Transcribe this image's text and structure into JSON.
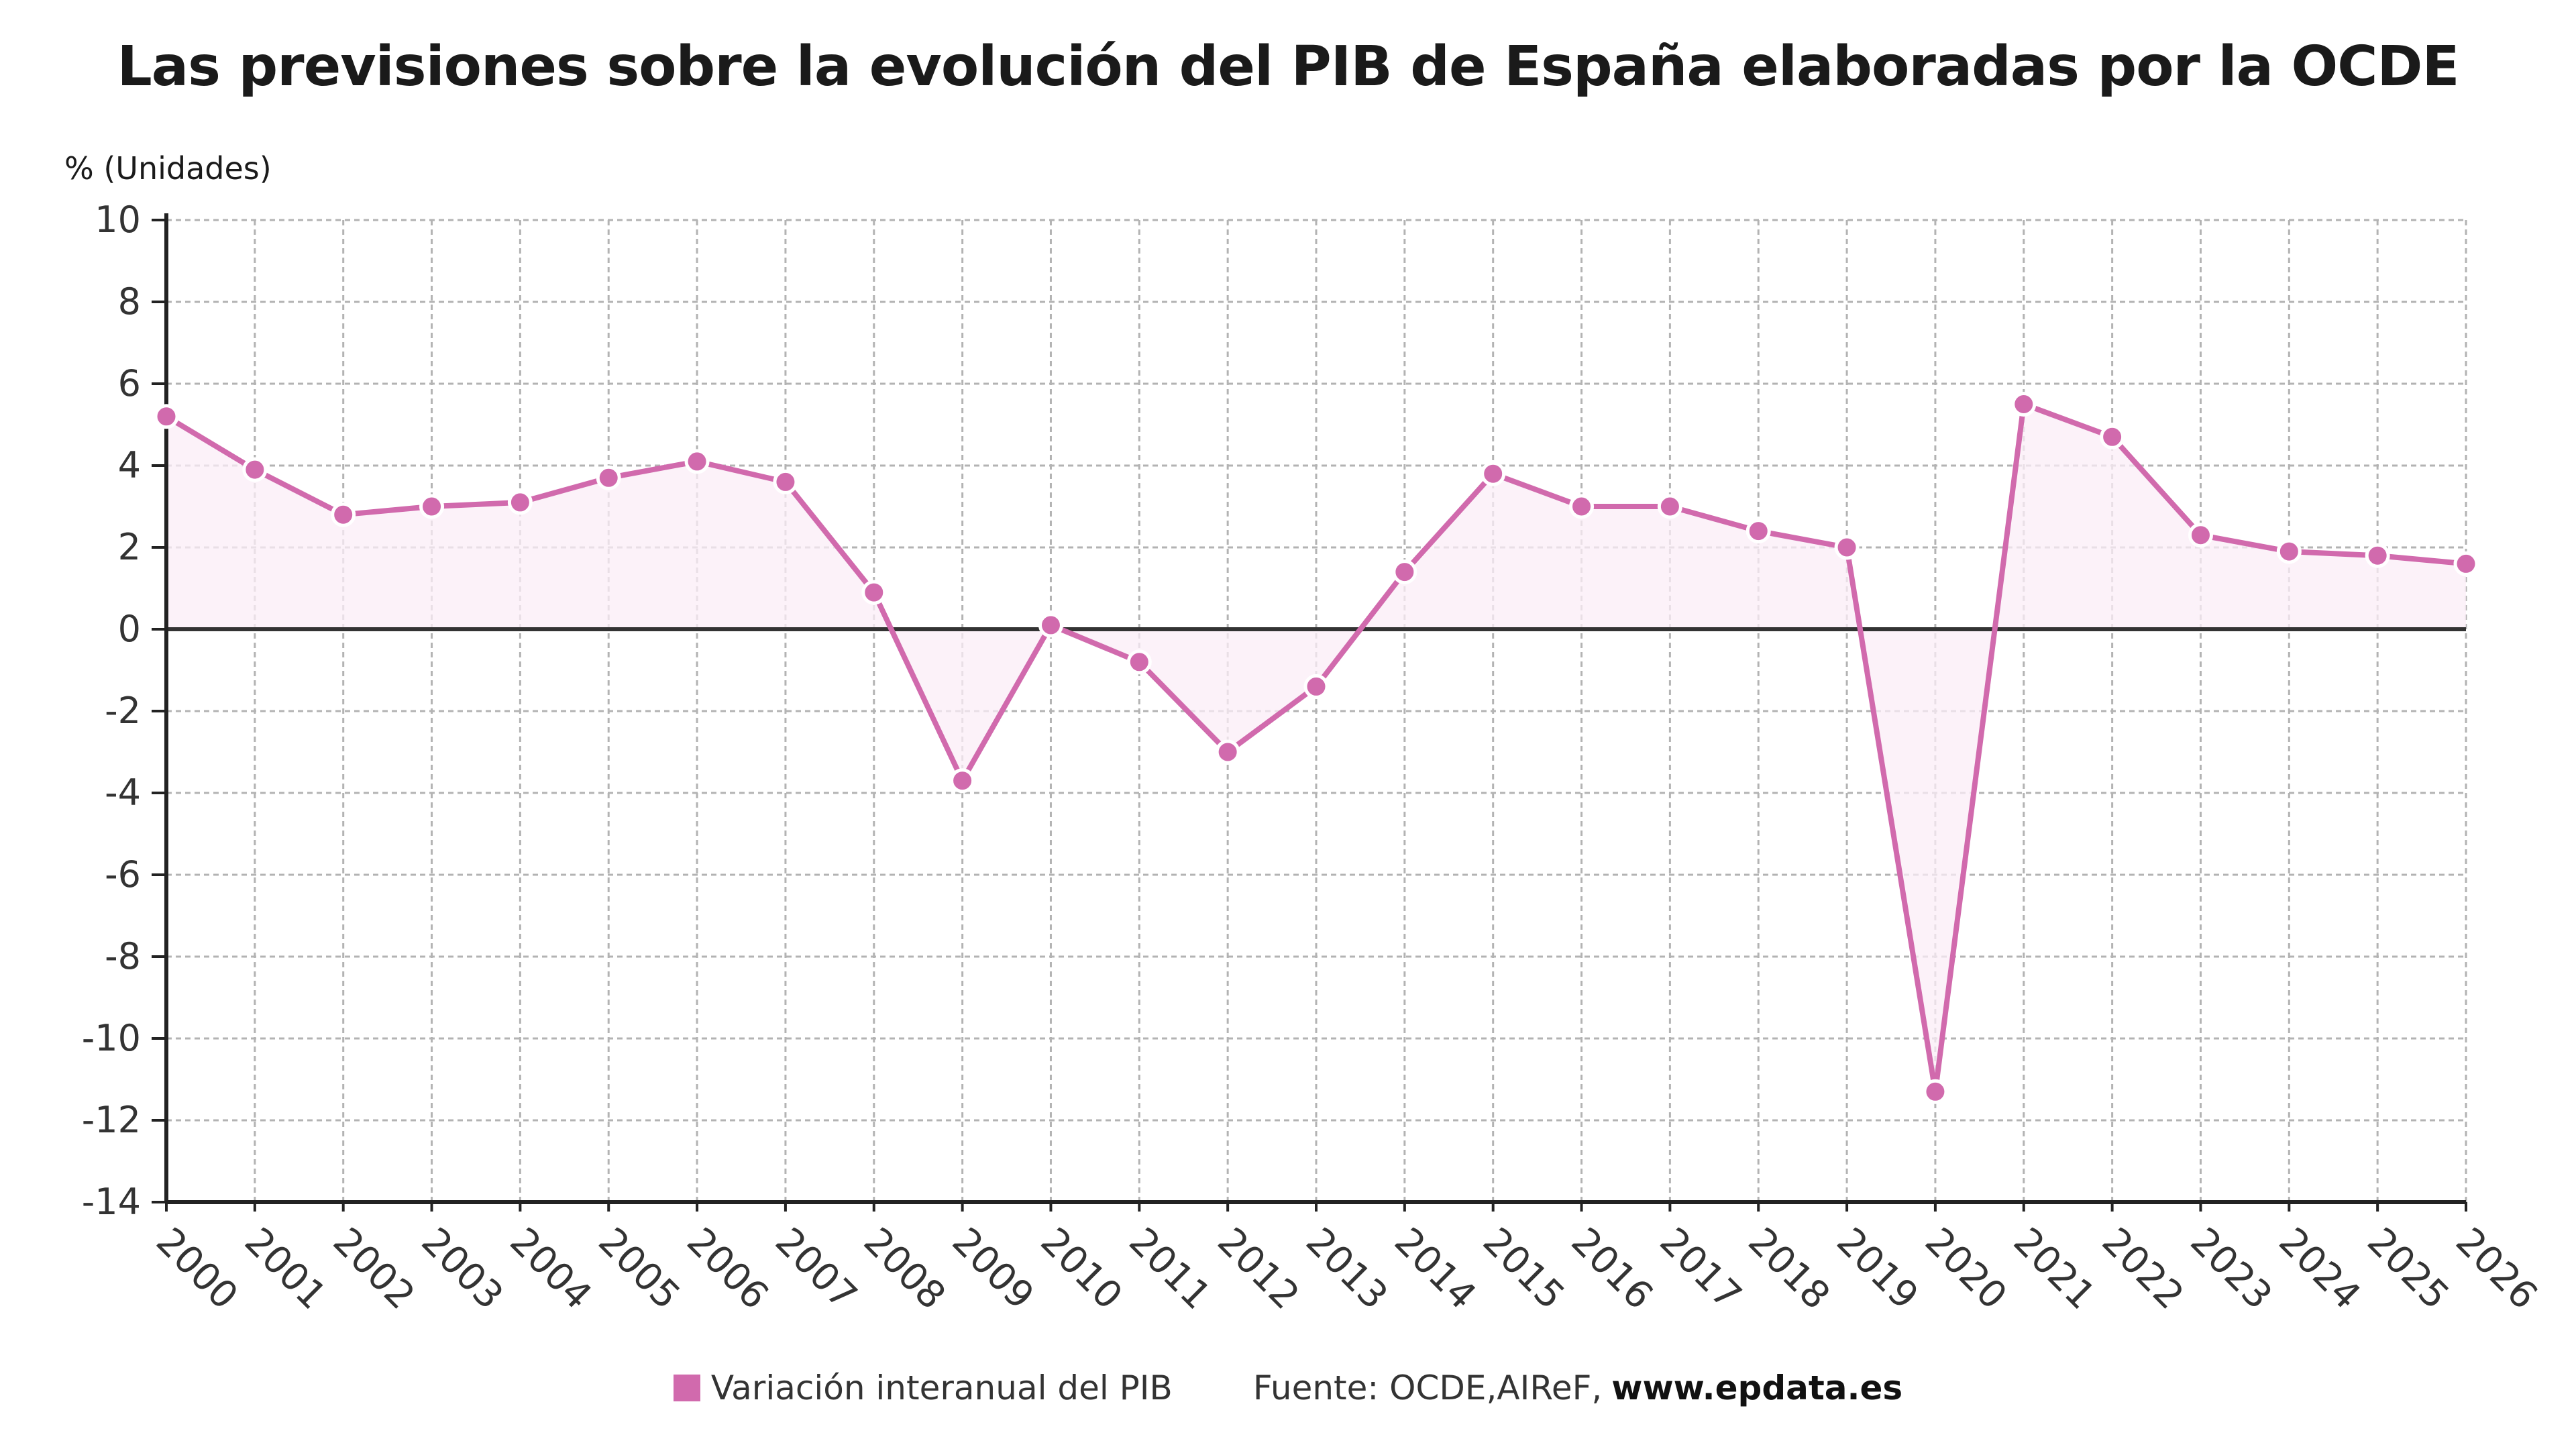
{
  "chart_data": {
    "type": "line",
    "title": "Las previsiones sobre la evolución del PIB de España elaboradas por la OCDE",
    "ylabel": "% (Unidades)",
    "xlabel": "",
    "ylim": [
      -14,
      10
    ],
    "ytick_step": 2,
    "grid": true,
    "legend_position": "bottom",
    "categories": [
      "2000",
      "2001",
      "2002",
      "2003",
      "2004",
      "2005",
      "2006",
      "2007",
      "2008",
      "2009",
      "2010",
      "2011",
      "2012",
      "2013",
      "2014",
      "2015",
      "2016",
      "2017",
      "2018",
      "2019",
      "2020",
      "2021",
      "2022",
      "2023",
      "2024",
      "2025",
      "2026"
    ],
    "series": [
      {
        "name": "Variación interanual del PIB",
        "color": "#d16aad",
        "values": [
          5.2,
          3.9,
          2.8,
          3.0,
          3.1,
          3.7,
          4.1,
          3.6,
          0.9,
          -3.7,
          0.1,
          -0.8,
          -3.0,
          -1.4,
          1.4,
          3.8,
          3.0,
          3.0,
          2.4,
          2.0,
          -11.3,
          5.5,
          4.7,
          2.3,
          1.9,
          1.8,
          1.6
        ]
      }
    ]
  },
  "source": {
    "prefix": "Fuente: OCDE,AIReF,",
    "site": "www.epdata.es"
  },
  "colors": {
    "line": "#d16aad",
    "fill": "#fbeef7",
    "grid": "#b3b3b3",
    "zero_line": "#333333",
    "axis": "#222222",
    "text": "#333333"
  }
}
